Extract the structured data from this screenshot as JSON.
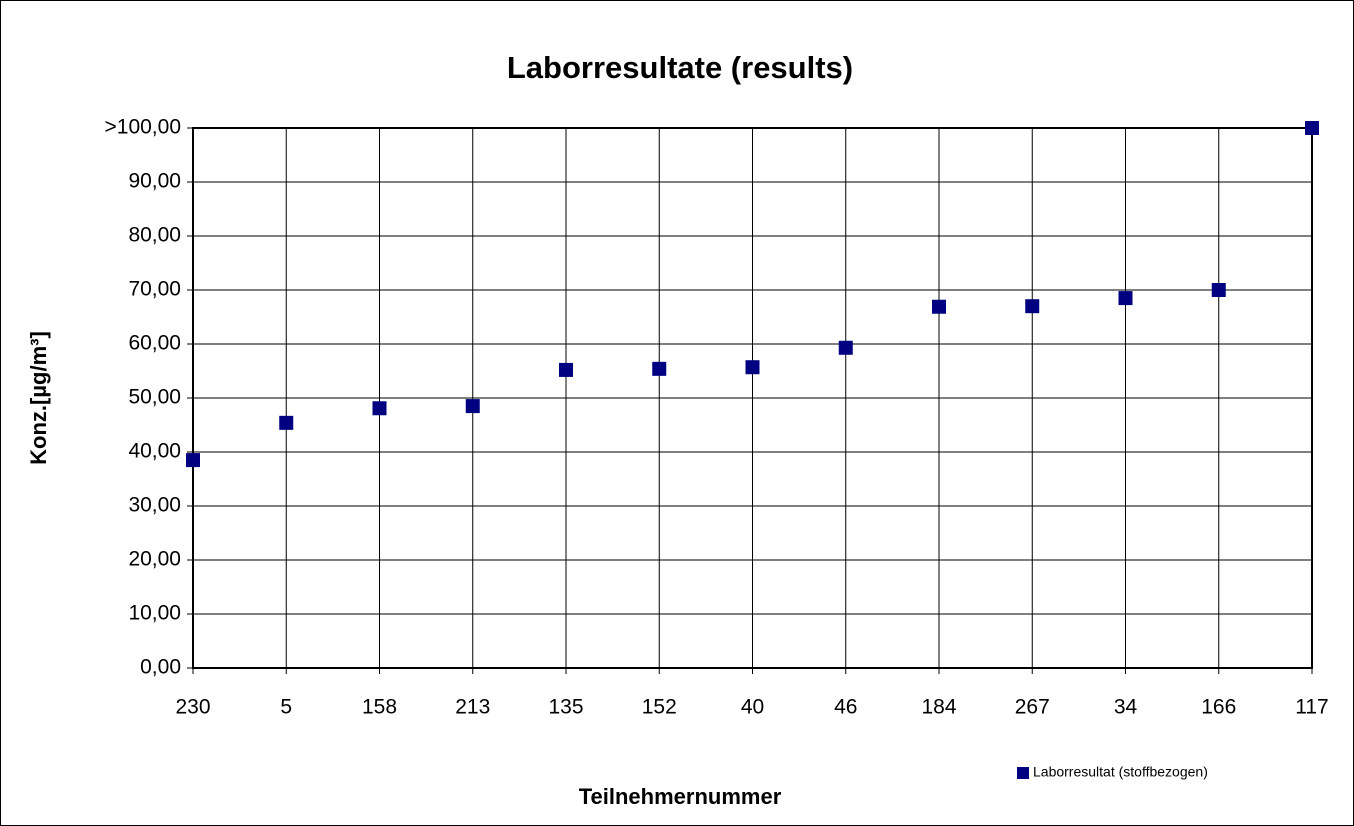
{
  "chart_data": {
    "type": "scatter",
    "title": "Laborresultate (results)",
    "x_label": "Teilnehmernummer",
    "y_label": "Konz.[µg/m³]",
    "categories": [
      "230",
      "5",
      "158",
      "213",
      "135",
      "152",
      "40",
      "46",
      "184",
      "267",
      "34",
      "166",
      "117"
    ],
    "series": [
      {
        "name": "Laborresultat (stoffbezogen)",
        "color": "#000080",
        "values": [
          38.5,
          45.4,
          48.1,
          48.5,
          55.2,
          55.4,
          55.7,
          59.3,
          66.9,
          67.0,
          68.5,
          70.0,
          100
        ]
      }
    ],
    "ylim": [
      0,
      100
    ],
    "yticks": [
      {
        "value": 0,
        "label": "0,00"
      },
      {
        "value": 10,
        "label": "10,00"
      },
      {
        "value": 20,
        "label": "20,00"
      },
      {
        "value": 30,
        "label": "30,00"
      },
      {
        "value": 40,
        "label": "40,00"
      },
      {
        "value": 50,
        "label": "50,00"
      },
      {
        "value": 60,
        "label": "60,00"
      },
      {
        "value": 70,
        "label": "70,00"
      },
      {
        "value": 80,
        "label": "80,00"
      },
      {
        "value": 90,
        "label": "90,00"
      },
      {
        "value": 100,
        "label": ">100,00"
      }
    ],
    "grid": true,
    "legend": "bottom-right"
  }
}
